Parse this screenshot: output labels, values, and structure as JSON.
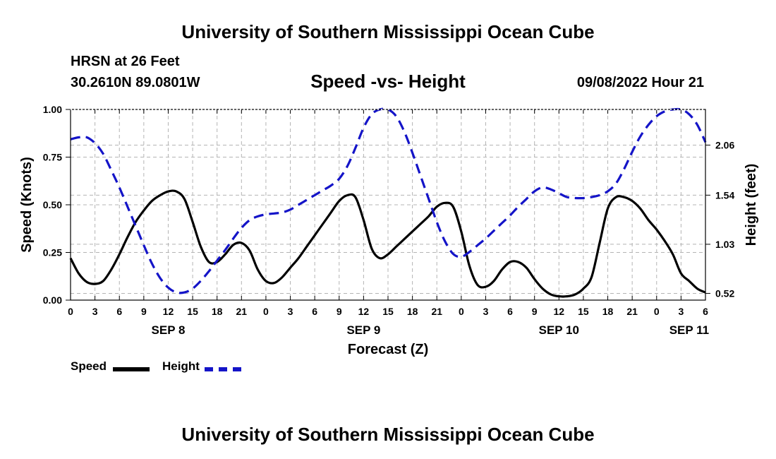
{
  "header": {
    "title": "University of Southern Mississippi Ocean Cube",
    "station": "HRSN at 26 Feet",
    "coordinates": "30.2610N  89.0801W",
    "subtitle": "Speed -vs- Height",
    "datetime": "09/08/2022 Hour 21"
  },
  "footer": {
    "title": "University of Southern Mississippi Ocean Cube"
  },
  "legend": {
    "speed_label": "Speed",
    "height_label": "Height"
  },
  "colors": {
    "speed": "#000000",
    "height": "#1414c8",
    "grid": "#b4b4b4"
  },
  "chart_data": {
    "type": "line",
    "title": "Speed -vs- Height",
    "xlabel": "Forecast (Z)",
    "ylabel": "Speed (Knots)",
    "y2label": "Height (feet)",
    "x_unit": "hours since SEP 8 00Z",
    "xlim": [
      0,
      78
    ],
    "ylim": [
      0,
      1
    ],
    "y2lim": [
      0.45,
      2.43
    ],
    "x_ticks": [
      0,
      3,
      6,
      9,
      12,
      15,
      18,
      21,
      24,
      27,
      30,
      33,
      36,
      39,
      42,
      45,
      48,
      51,
      54,
      57,
      60,
      63,
      66,
      69,
      72,
      75,
      78
    ],
    "x_tick_labels": [
      "0",
      "3",
      "6",
      "9",
      "12",
      "15",
      "18",
      "21",
      "0",
      "3",
      "6",
      "9",
      "12",
      "15",
      "18",
      "21",
      "0",
      "3",
      "6",
      "9",
      "12",
      "15",
      "18",
      "21",
      "0",
      "3",
      "6"
    ],
    "y_ticks": [
      0,
      0.25,
      0.5,
      0.75,
      1.0
    ],
    "y_tick_labels": [
      "0.00",
      "0.25",
      "0.50",
      "0.75",
      "1.00"
    ],
    "y2_ticks": [
      0.52,
      1.03,
      1.54,
      2.06
    ],
    "y2_tick_labels": [
      "0.52",
      "1.03",
      "1.54",
      "2.06"
    ],
    "day_labels": [
      {
        "label": "SEP 8",
        "x": 12
      },
      {
        "label": "SEP 9",
        "x": 36
      },
      {
        "label": "SEP 10",
        "x": 60
      },
      {
        "label": "SEP 11",
        "x": 76
      }
    ],
    "grid": true,
    "series": [
      {
        "name": "Speed",
        "axis": "left",
        "style": "solid",
        "x": [
          0,
          1,
          2,
          3,
          4,
          5,
          6,
          7,
          8,
          9,
          10,
          11,
          12,
          13,
          14,
          15,
          16,
          17,
          18,
          19,
          20,
          21,
          22,
          23,
          24,
          25,
          26,
          27,
          28,
          29,
          30,
          31,
          32,
          33,
          34,
          35,
          36,
          37,
          38,
          39,
          40,
          41,
          42,
          43,
          44,
          45,
          46,
          47,
          48,
          49,
          50,
          51,
          52,
          53,
          54,
          55,
          56,
          57,
          58,
          59,
          60,
          61,
          62,
          63,
          64,
          65,
          66,
          67,
          68,
          69,
          70,
          71,
          72,
          73,
          74,
          75,
          76,
          77,
          78
        ],
        "y": [
          0.22,
          0.14,
          0.095,
          0.085,
          0.1,
          0.16,
          0.24,
          0.33,
          0.41,
          0.47,
          0.52,
          0.55,
          0.57,
          0.57,
          0.53,
          0.41,
          0.28,
          0.2,
          0.2,
          0.24,
          0.29,
          0.3,
          0.26,
          0.16,
          0.1,
          0.09,
          0.12,
          0.17,
          0.22,
          0.28,
          0.34,
          0.4,
          0.46,
          0.52,
          0.55,
          0.54,
          0.42,
          0.27,
          0.22,
          0.24,
          0.28,
          0.32,
          0.36,
          0.4,
          0.44,
          0.49,
          0.51,
          0.49,
          0.36,
          0.18,
          0.08,
          0.07,
          0.1,
          0.16,
          0.2,
          0.2,
          0.17,
          0.11,
          0.06,
          0.03,
          0.02,
          0.02,
          0.03,
          0.06,
          0.12,
          0.3,
          0.48,
          0.54,
          0.54,
          0.52,
          0.48,
          0.42,
          0.37,
          0.31,
          0.24,
          0.14,
          0.1,
          0.06,
          0.04
        ]
      },
      {
        "name": "Height",
        "axis": "right",
        "style": "dashed",
        "x": [
          0,
          1,
          2,
          3,
          4,
          5,
          6,
          7,
          8,
          9,
          10,
          11,
          12,
          13,
          14,
          15,
          16,
          17,
          18,
          19,
          20,
          21,
          22,
          23,
          24,
          25,
          26,
          27,
          28,
          29,
          30,
          31,
          32,
          33,
          34,
          35,
          36,
          37,
          38,
          39,
          40,
          41,
          42,
          43,
          44,
          45,
          46,
          47,
          48,
          49,
          50,
          51,
          52,
          53,
          54,
          55,
          56,
          57,
          58,
          59,
          60,
          61,
          62,
          63,
          64,
          65,
          66,
          67,
          68,
          69,
          70,
          71,
          72,
          73,
          74,
          75,
          76,
          77,
          78
        ],
        "y": [
          2.12,
          2.14,
          2.14,
          2.08,
          1.97,
          1.8,
          1.62,
          1.42,
          1.22,
          1.02,
          0.83,
          0.68,
          0.58,
          0.53,
          0.53,
          0.57,
          0.65,
          0.75,
          0.86,
          0.97,
          1.09,
          1.2,
          1.28,
          1.32,
          1.34,
          1.35,
          1.36,
          1.39,
          1.44,
          1.49,
          1.54,
          1.59,
          1.64,
          1.71,
          1.84,
          2.03,
          2.24,
          2.38,
          2.43,
          2.43,
          2.36,
          2.2,
          1.98,
          1.74,
          1.5,
          1.26,
          1.06,
          0.93,
          0.9,
          0.95,
          1.02,
          1.09,
          1.17,
          1.25,
          1.33,
          1.42,
          1.5,
          1.58,
          1.62,
          1.6,
          1.56,
          1.52,
          1.51,
          1.51,
          1.52,
          1.54,
          1.58,
          1.66,
          1.81,
          1.99,
          2.15,
          2.27,
          2.36,
          2.41,
          2.43,
          2.43,
          2.38,
          2.27,
          2.09
        ]
      }
    ]
  }
}
